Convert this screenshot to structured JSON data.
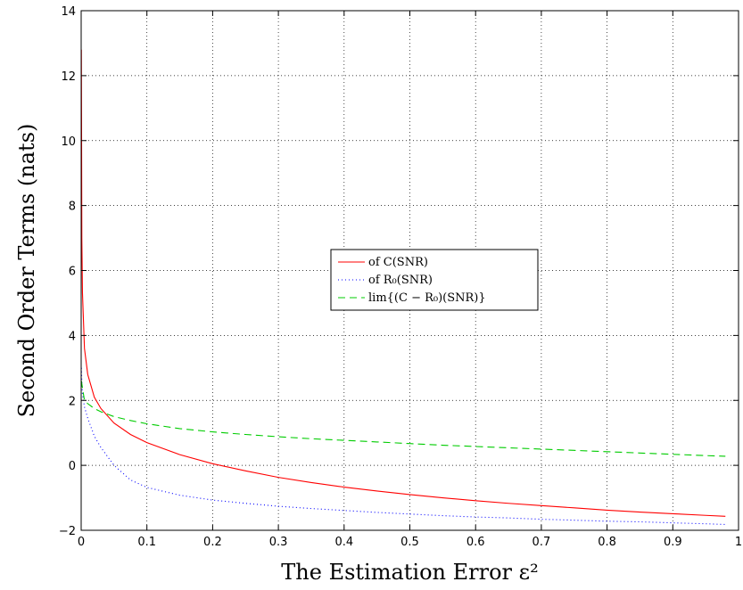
{
  "chart_data": {
    "type": "line",
    "title": "",
    "xlabel": "The Estimation Error ε²",
    "ylabel": "Second Order Terms (nats)",
    "xlim": [
      0,
      1
    ],
    "ylim": [
      -2,
      14
    ],
    "x_ticks": [
      0,
      0.1,
      0.2,
      0.3,
      0.4,
      0.5,
      0.6,
      0.7,
      0.8,
      0.9,
      1
    ],
    "x_tick_labels": [
      "0",
      "0.1",
      "0.2",
      "0.3",
      "0.4",
      "0.5",
      "0.6",
      "0.7",
      "0.8",
      "0.9",
      "1"
    ],
    "y_ticks": [
      -2,
      0,
      2,
      4,
      6,
      8,
      10,
      12,
      14
    ],
    "y_tick_labels": [
      "−2",
      "0",
      "2",
      "4",
      "6",
      "8",
      "10",
      "12",
      "14"
    ],
    "grid": true,
    "legend_position": "center-right",
    "series": [
      {
        "name": "of C(SNR)",
        "color": "#ff0000",
        "dash": "solid",
        "x": [
          0.0003,
          0.001,
          0.002,
          0.005,
          0.01,
          0.02,
          0.03,
          0.05,
          0.075,
          0.1,
          0.15,
          0.2,
          0.25,
          0.3,
          0.35,
          0.4,
          0.45,
          0.5,
          0.55,
          0.6,
          0.65,
          0.7,
          0.75,
          0.8,
          0.85,
          0.9,
          0.95,
          0.98
        ],
        "y": [
          12.8,
          7.0,
          5.3,
          3.6,
          2.8,
          2.1,
          1.75,
          1.3,
          0.95,
          0.7,
          0.33,
          0.05,
          -0.17,
          -0.37,
          -0.53,
          -0.67,
          -0.79,
          -0.9,
          -1.0,
          -1.09,
          -1.17,
          -1.24,
          -1.31,
          -1.38,
          -1.44,
          -1.49,
          -1.54,
          -1.57
        ]
      },
      {
        "name": "of R₀(SNR)",
        "color": "#0000ff",
        "dash": "dotted",
        "x": [
          0.0003,
          0.001,
          0.002,
          0.005,
          0.01,
          0.02,
          0.03,
          0.05,
          0.075,
          0.1,
          0.15,
          0.2,
          0.25,
          0.3,
          0.35,
          0.4,
          0.45,
          0.5,
          0.55,
          0.6,
          0.65,
          0.7,
          0.75,
          0.8,
          0.85,
          0.9,
          0.95,
          0.98
        ],
        "y": [
          3.0,
          2.55,
          2.2,
          1.8,
          1.45,
          0.9,
          0.55,
          0.0,
          -0.45,
          -0.68,
          -0.92,
          -1.07,
          -1.17,
          -1.26,
          -1.33,
          -1.39,
          -1.45,
          -1.5,
          -1.55,
          -1.59,
          -1.62,
          -1.66,
          -1.69,
          -1.72,
          -1.74,
          -1.77,
          -1.8,
          -1.82
        ]
      },
      {
        "name": "lim{(C − R₀)(SNR)}",
        "color": "#00cc00",
        "dash": "dashed",
        "x": [
          0.0003,
          0.005,
          0.01,
          0.02,
          0.03,
          0.05,
          0.075,
          0.1,
          0.15,
          0.2,
          0.25,
          0.3,
          0.35,
          0.4,
          0.45,
          0.5,
          0.55,
          0.6,
          0.65,
          0.7,
          0.75,
          0.8,
          0.85,
          0.9,
          0.95,
          0.98
        ],
        "y": [
          2.6,
          2.0,
          1.9,
          1.75,
          1.65,
          1.5,
          1.38,
          1.28,
          1.13,
          1.03,
          0.95,
          0.88,
          0.82,
          0.77,
          0.72,
          0.67,
          0.62,
          0.58,
          0.54,
          0.5,
          0.46,
          0.42,
          0.38,
          0.34,
          0.3,
          0.28
        ]
      }
    ]
  }
}
